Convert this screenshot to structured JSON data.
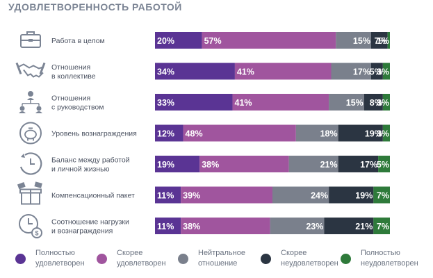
{
  "chart_data": {
    "type": "bar",
    "stacked": true,
    "orientation": "horizontal",
    "title": "УДОВЛЕТВОРЕННОСТЬ РАБОТОЙ",
    "legend_position": "bottom",
    "value_suffix": "%",
    "categories": [
      {
        "label": "Работа в целом",
        "icon": "briefcase-icon"
      },
      {
        "label": "Отношения\nв коллективе",
        "icon": "handshake-icon"
      },
      {
        "label": "Отношения\nс руководством",
        "icon": "org-chart-icon"
      },
      {
        "label": "Уровень вознаграждения",
        "icon": "piggy-bank-icon"
      },
      {
        "label": "Баланс между работой\nи личной жизнью",
        "icon": "clock-icon"
      },
      {
        "label": "Компенсационный пакет",
        "icon": "gift-box-icon"
      },
      {
        "label": "Соотношение нагрузки\nи вознаграждения",
        "icon": "clock-coin-icon"
      }
    ],
    "series": [
      {
        "name": "Полностью\nудовлетворен",
        "color": "#5a3494",
        "values": [
          20,
          34,
          33,
          12,
          19,
          11,
          11
        ]
      },
      {
        "name": "Скорее\nудовлетворен",
        "color": "#a0559e",
        "values": [
          57,
          41,
          41,
          48,
          38,
          39,
          38
        ]
      },
      {
        "name": "Нейтральное\nотношение",
        "color": "#7a808c",
        "values": [
          15,
          17,
          15,
          18,
          21,
          24,
          23
        ]
      },
      {
        "name": "Скорее\nнеудовлетворен",
        "color": "#2b3542",
        "values": [
          7,
          5,
          8,
          19,
          17,
          19,
          21
        ]
      },
      {
        "name": "Полностью\nнеудовлетворен",
        "color": "#2e7a3a",
        "values": [
          1,
          3,
          3,
          3,
          5,
          7,
          7
        ]
      }
    ],
    "label_color": "#ffffff",
    "category_label_color": "#4a5160",
    "icon_color": "#7b8494"
  }
}
